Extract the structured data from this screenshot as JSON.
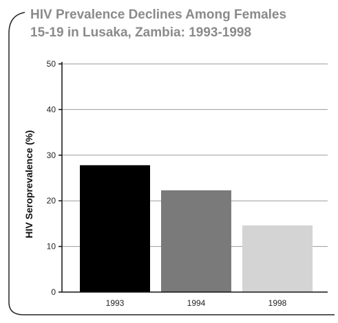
{
  "chart_data": {
    "type": "bar",
    "title_lines": [
      "HIV Prevalence Declines Among Females",
      "15-19 in Lusaka, Zambia: 1993-1998"
    ],
    "xlabel": "",
    "ylabel": "HIV Seroprevalence (%)",
    "categories": [
      "1993",
      "1994",
      "1998"
    ],
    "values": [
      27.8,
      22.3,
      14.6
    ],
    "ylim": [
      0,
      50
    ],
    "yticks": [
      0,
      10,
      20,
      30,
      40,
      50
    ],
    "grid": true,
    "legend": "none",
    "bar_colors": [
      "#000000",
      "#7a7a7a",
      "#d4d4d4"
    ],
    "title_color": "#8a8a8a"
  }
}
